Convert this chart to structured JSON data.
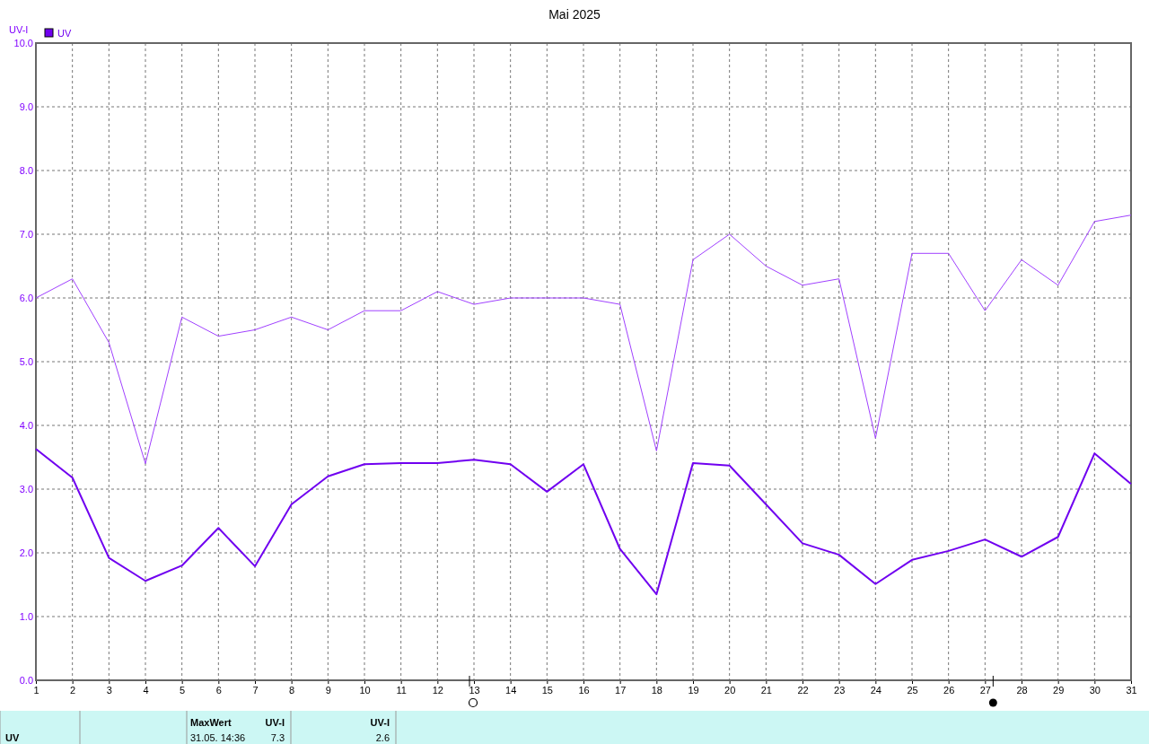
{
  "chart_data": {
    "type": "line",
    "title": "Mai 2025",
    "ylabel": "UV-I",
    "x": [
      1,
      2,
      3,
      4,
      5,
      6,
      7,
      8,
      9,
      10,
      11,
      12,
      13,
      14,
      15,
      16,
      17,
      18,
      19,
      20,
      21,
      22,
      23,
      24,
      25,
      26,
      27,
      28,
      29,
      30,
      31
    ],
    "series": [
      {
        "color": "#a040ff",
        "values": [
          6.0,
          6.3,
          5.3,
          3.4,
          5.7,
          5.4,
          5.5,
          5.7,
          5.5,
          5.8,
          5.8,
          6.1,
          5.9,
          6.0,
          6.0,
          6.0,
          5.9,
          3.6,
          6.6,
          7.0,
          6.5,
          6.2,
          6.3,
          3.8,
          6.7,
          6.7,
          5.8,
          6.6,
          6.2,
          7.2,
          7.3
        ]
      },
      {
        "name": "UV",
        "color": "#7000f0",
        "values": [
          3.63,
          3.18,
          1.92,
          1.56,
          1.8,
          2.39,
          1.79,
          2.76,
          3.2,
          3.39,
          3.41,
          3.41,
          3.46,
          3.39,
          2.96,
          3.39,
          2.06,
          1.35,
          3.41,
          3.37,
          2.76,
          2.15,
          1.97,
          1.51,
          1.89,
          2.03,
          2.21,
          1.94,
          2.25,
          3.56,
          3.08
        ]
      }
    ],
    "xlim": [
      1,
      31
    ],
    "xticks": [
      1,
      2,
      3,
      4,
      5,
      6,
      7,
      8,
      9,
      10,
      11,
      12,
      13,
      14,
      15,
      16,
      17,
      18,
      19,
      20,
      21,
      22,
      23,
      24,
      25,
      26,
      27,
      28,
      29,
      30,
      31
    ],
    "ylim": [
      0,
      10
    ],
    "yticks": [
      {
        "value": 0,
        "label": "0.0"
      },
      {
        "value": 1,
        "label": "1.0"
      },
      {
        "value": 2,
        "label": "2.0"
      },
      {
        "value": 3,
        "label": "3.0"
      },
      {
        "value": 4,
        "label": "4.0"
      },
      {
        "value": 5,
        "label": "5.0"
      },
      {
        "value": 6,
        "label": "6.0"
      },
      {
        "value": 7,
        "label": "7.0"
      },
      {
        "value": 8,
        "label": "8.0"
      },
      {
        "value": 9,
        "label": "9.0"
      },
      {
        "value": 10,
        "label": "10.0"
      }
    ],
    "grid": true,
    "legend": "top left",
    "marker": "none",
    "line_style": "solid",
    "annotations": [
      "UV",
      "MaxWert",
      "31.05.  14:36",
      "UV-I",
      "7.3",
      "UV-I",
      "2.6"
    ]
  }
}
